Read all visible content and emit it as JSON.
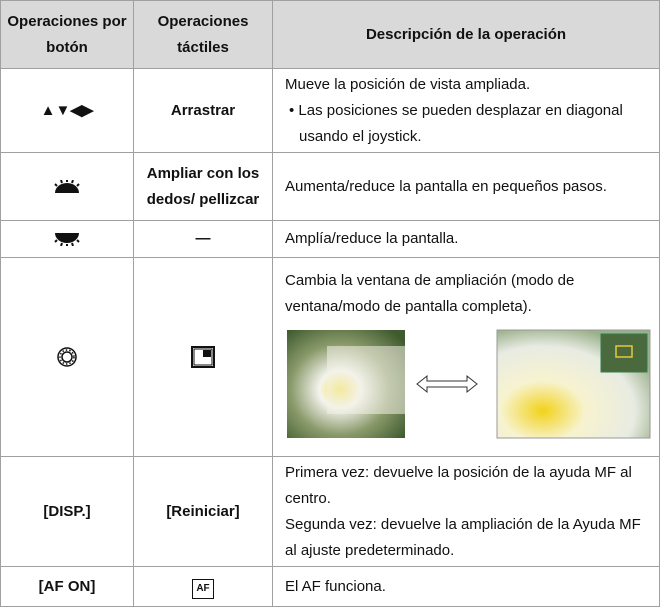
{
  "table": {
    "header": [
      "Operaciones por botón",
      "Operaciones táctiles",
      "Descripción de la operación"
    ],
    "rows": [
      {
        "button": "▲▼◀▶",
        "touch": "Arrastrar",
        "description": [
          "Mueve la posición de vista ampliada.",
          "Las posiciones se pueden desplazar en diagonal usando el joystick."
        ]
      },
      {
        "touch": "Ampliar con los dedos/ pellizcar",
        "description": [
          "Aumenta/reduce la pantalla en pequeños pasos."
        ]
      },
      {
        "touch": "—",
        "description": [
          "Amplía/reduce la pantalla."
        ]
      },
      {
        "description": [
          "Cambia la ventana de ampliación (modo de ventana/modo de pantalla completa)."
        ]
      },
      {
        "button": "[DISP.]",
        "touch": "[Reiniciar]",
        "description": [
          "Primera vez: devuelve la posición de la ayuda MF al centro.",
          "Segunda vez: devuelve la ampliación de la Ayuda MF al ajuste predeterminado."
        ]
      },
      {
        "button": "[AF ON]",
        "touch_icon": "AF",
        "description": [
          "El AF funciona."
        ]
      }
    ]
  }
}
